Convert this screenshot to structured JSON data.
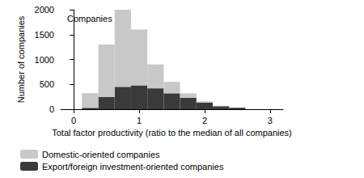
{
  "chart_data": {
    "type": "histogram",
    "title": "Companies",
    "x_label": "Total factor productivity (ratio to the median of all companies)",
    "y_label": "Number of companies",
    "bins": [
      0.125,
      0.375,
      0.625,
      0.875,
      1.125,
      1.375,
      1.625,
      1.875,
      2.125,
      2.375,
      2.625
    ],
    "series": [
      {
        "name": "Domestic-oriented companies",
        "color": "#c8c8c8",
        "values": [
          290,
          1050,
          1550,
          1120,
          480,
          230,
          90,
          30,
          10,
          0
        ]
      },
      {
        "name": "Export/foreign investment-oriented companies",
        "color": "#3a3a3a",
        "values": [
          30,
          250,
          450,
          480,
          420,
          320,
          230,
          130,
          60,
          30
        ]
      }
    ],
    "stacked": true,
    "xlim": [
      -0.2,
      3.2
    ],
    "xticks": [
      0,
      1,
      2,
      3
    ],
    "ylim": [
      0,
      2000
    ],
    "yticks": [
      0,
      500,
      1000,
      1500,
      2000
    ],
    "grid": false,
    "legend": "bottom"
  }
}
